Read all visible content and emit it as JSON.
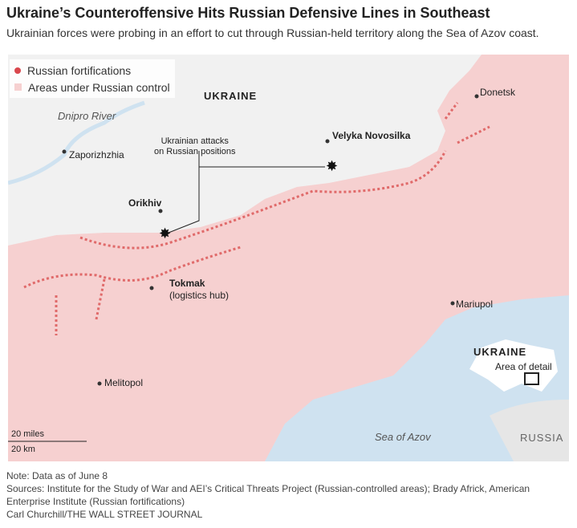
{
  "title": "Ukraine’s Counteroffensive Hits Russian Defensive Lines in Southeast",
  "subtitle": "Ukrainian forces were probing in an effort to cut through Russian-held territory along the Sea of Azov coast.",
  "legend": {
    "fortifications": "Russian fortifications",
    "control": "Areas under Russian control"
  },
  "colors": {
    "fortification": "#d9474d",
    "russian_control": "#f6d0d0",
    "water": "#cfe2f0",
    "land": "#f1f1f1"
  },
  "labels": {
    "ukraine": "UKRAINE",
    "dnipro": "Dnipro River",
    "zaporizhzhia": "Zaporizhzhia",
    "attacks": "Ukrainian attacks\non Russian positions",
    "velyka": "Velyka Novosilka",
    "orikhiv": "Orikhiv",
    "tokmak": "Tokmak",
    "tokmak_note": "(logistics hub)",
    "donetsk": "Donetsk",
    "mariupol": "Mariupol",
    "melitopol": "Melitopol",
    "sea": "Sea of Azov",
    "inset_ukraine": "UKRAINE",
    "inset_detail": "Area of detail",
    "russia": "RUSSIA",
    "scale_miles": "20 miles",
    "scale_km": "20 km"
  },
  "notes": {
    "note": "Note: Data as of June 8",
    "sources": "Sources: Institute for the Study of War and AEI’s Critical Threats Project (Russian-controlled areas); Brady Africk, American Enterprise Institute (Russian fortifications)",
    "credit": "Carl Churchill/THE WALL STREET JOURNAL"
  }
}
